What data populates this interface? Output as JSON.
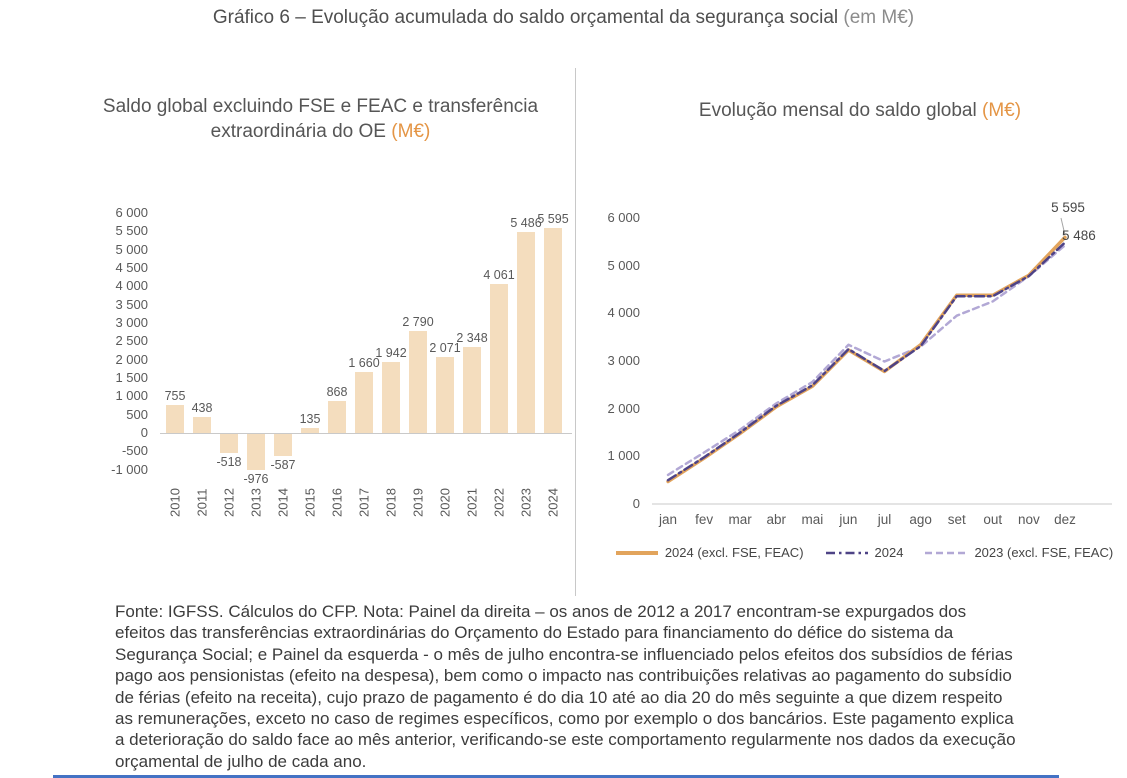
{
  "page_title": {
    "text": "Gráfico 6 – Evolução acumulada do saldo orçamental da segurança social",
    "unit": "(em M€)"
  },
  "colors": {
    "bar_fill": "#f4ddbe",
    "series_2024_excl": "#e2a45c",
    "series_2024": "#4e4386",
    "series_2023_excl": "#b2a8d5",
    "panel_unit_accent": "#e49545",
    "axis_text": "#595959",
    "title_text": "#4f4f4f",
    "note_text": "#3c3c3c",
    "divider": "#c8c8c8",
    "axis_line": "#c9c9c9",
    "leader_line": "#a6a6a6",
    "bottom_rule": "#4472c4"
  },
  "chart_data": [
    {
      "type": "bar",
      "title": "Saldo global excluindo FSE e FEAC e transferência extraordinária do OE",
      "title_unit": "(M€)",
      "categories": [
        "2010",
        "2011",
        "2012",
        "2013",
        "2014",
        "2015",
        "2016",
        "2017",
        "2018",
        "2019",
        "2020",
        "2021",
        "2022",
        "2023",
        "2024"
      ],
      "values": [
        755,
        438,
        -518,
        -976,
        -587,
        135,
        868,
        1660,
        1942,
        2790,
        2071,
        2348,
        4061,
        5486,
        5595
      ],
      "value_labels": [
        "755",
        "438",
        "-518",
        "-976",
        "-587",
        "135",
        "868",
        "1 660",
        "1 942",
        "2 790",
        "2 071",
        "2 348",
        "4 061",
        "5 486",
        "5 595"
      ],
      "ylim": [
        -1000,
        6000
      ],
      "ytick_values": [
        6000,
        5500,
        5000,
        4500,
        4000,
        3500,
        3000,
        2500,
        2000,
        1500,
        1000,
        500,
        0,
        -500,
        -1000
      ],
      "ytick_labels": [
        "6 000",
        "5 500",
        "5 000",
        "4 500",
        "4 000",
        "3 500",
        "3 000",
        "2 500",
        "2 000",
        "1 500",
        "1 000",
        "500",
        "0",
        "-500",
        "-1 000"
      ],
      "grid": false,
      "bar_color_key": "bar_fill"
    },
    {
      "type": "line",
      "title": "Evolução mensal do saldo global",
      "title_unit": "(M€)",
      "x": [
        "jan",
        "fev",
        "mar",
        "abr",
        "mai",
        "jun",
        "jul",
        "ago",
        "set",
        "out",
        "nov",
        "dez"
      ],
      "ylim": [
        0,
        6000
      ],
      "ytick_values": [
        6000,
        5000,
        4000,
        3000,
        2000,
        1000,
        0
      ],
      "ytick_labels": [
        "6 000",
        "5 000",
        "4 000",
        "3 000",
        "2 000",
        "1 000",
        "0"
      ],
      "grid": false,
      "legend_position": "bottom",
      "series": [
        {
          "name": "2024 (excl. FSE, FEAC)",
          "style": "solid",
          "color_key": "series_2024_excl",
          "values": [
            470,
            960,
            1480,
            2040,
            2470,
            3230,
            2780,
            3340,
            4380,
            4380,
            4800,
            5595
          ]
        },
        {
          "name": "2024",
          "style": "dashdot",
          "color_key": "series_2024",
          "values": [
            500,
            980,
            1500,
            2060,
            2490,
            3250,
            2790,
            3310,
            4360,
            4360,
            4780,
            5486
          ]
        },
        {
          "name": "2023 (excl. FSE, FEAC)",
          "style": "dashed",
          "color_key": "series_2023_excl",
          "values": [
            610,
            1080,
            1560,
            2110,
            2560,
            3340,
            2990,
            3300,
            3950,
            4250,
            4780,
            5430
          ]
        }
      ],
      "end_labels": [
        {
          "text": "5 595",
          "series": 0
        },
        {
          "text": "5 486",
          "series": 1
        }
      ]
    }
  ],
  "source_note": "Fonte: IGFSS. Cálculos do CFP. Nota: Painel da direita – os anos de 2012 a 2017 encontram-se expurgados dos efeitos das transferências extraordinárias do Orçamento do Estado para financiamento do défice do sistema da Segurança Social; e Painel da esquerda - o mês de julho encontra-se influenciado pelos efeitos dos subsídios de férias pago aos pensionistas (efeito na despesa), bem como o impacto nas contribuições relativas ao pagamento do subsídio de férias (efeito na receita), cujo prazo de pagamento é do dia 10 até ao dia 20 do mês seguinte a que dizem respeito as remunerações, exceto no caso de regimes específicos, como por exemplo o dos bancários. Este pagamento explica a deterioração do saldo face ao mês anterior, verificando-se este comportamento regularmente nos dados da execução orçamental de julho de cada ano."
}
